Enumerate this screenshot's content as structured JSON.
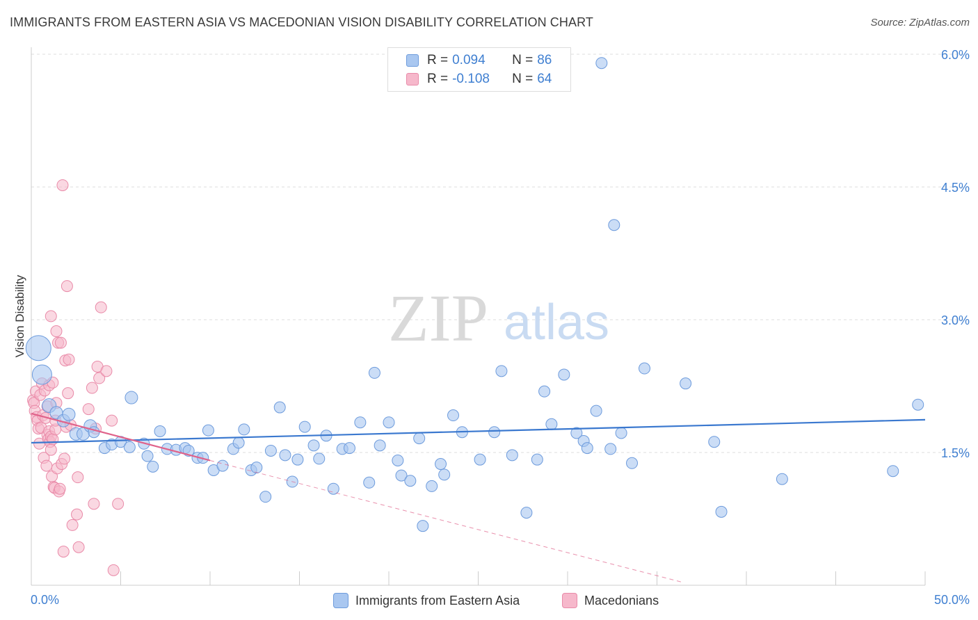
{
  "title": "IMMIGRANTS FROM EASTERN ASIA VS MACEDONIAN VISION DISABILITY CORRELATION CHART",
  "source": "Source: ZipAtlas.com",
  "watermark": {
    "zip": "ZIP",
    "atlas": "atlas"
  },
  "legend": {
    "rows": [
      {
        "r_label": "R =",
        "r_value": "0.094",
        "n_label": "N =",
        "n_value": "86"
      },
      {
        "r_label": "R =",
        "r_value": "-0.108",
        "n_label": "N =",
        "n_value": "64"
      }
    ]
  },
  "colors": {
    "blue_fill": "#a9c7f0",
    "blue_stroke": "#6d9bdc",
    "blue_line": "#3a78cf",
    "pink_fill": "#f6b8cb",
    "pink_stroke": "#e98aa8",
    "pink_line": "#e0628a",
    "axis_text": "#3f7fd1",
    "grid": "#dddddd"
  },
  "chart_data": {
    "type": "scatter",
    "title": "IMMIGRANTS FROM EASTERN ASIA VS MACEDONIAN VISION DISABILITY CORRELATION CHART",
    "xlabel": "",
    "ylabel": "Vision Disability",
    "xlim": [
      0,
      50
    ],
    "ylim": [
      0,
      6.3
    ],
    "x_tick_labels": [
      "0.0%",
      "50.0%"
    ],
    "y_ticks": [
      1.5,
      3.0,
      4.5,
      6.0
    ],
    "y_tick_labels": [
      "1.5%",
      "3.0%",
      "4.5%",
      "6.0%"
    ],
    "grid": true,
    "series": [
      {
        "name": "Immigrants from Eastern Asia",
        "r": 0.094,
        "n": 86,
        "trend": {
          "x0": 0.0,
          "y0": 1.61,
          "x1": 50.0,
          "y1": 1.87
        },
        "points": [
          [
            0.4,
            2.68,
            18
          ],
          [
            0.6,
            2.38,
            14
          ],
          [
            1.0,
            2.03,
            10
          ],
          [
            1.4,
            1.95,
            9
          ],
          [
            1.8,
            1.86,
            9
          ],
          [
            2.1,
            1.93,
            9
          ],
          [
            2.5,
            1.71,
            9
          ],
          [
            2.9,
            1.71,
            9
          ],
          [
            3.3,
            1.8,
            9
          ],
          [
            3.5,
            1.73,
            8
          ],
          [
            4.1,
            1.55,
            8
          ],
          [
            4.5,
            1.59,
            8
          ],
          [
            5.0,
            1.62,
            8
          ],
          [
            5.5,
            1.56,
            8
          ],
          [
            5.6,
            2.12,
            9
          ],
          [
            6.3,
            1.6,
            8
          ],
          [
            6.5,
            1.46,
            8
          ],
          [
            6.8,
            1.34,
            8
          ],
          [
            7.2,
            1.74,
            8
          ],
          [
            7.6,
            1.54,
            8
          ],
          [
            8.1,
            1.53,
            8
          ],
          [
            8.6,
            1.55,
            8
          ],
          [
            8.8,
            1.52,
            8
          ],
          [
            9.3,
            1.44,
            8
          ],
          [
            9.6,
            1.44,
            8
          ],
          [
            9.9,
            1.75,
            8
          ],
          [
            10.2,
            1.3,
            8
          ],
          [
            10.7,
            1.35,
            8
          ],
          [
            11.3,
            1.54,
            8
          ],
          [
            11.6,
            1.61,
            8
          ],
          [
            11.9,
            1.76,
            8
          ],
          [
            12.3,
            1.3,
            8
          ],
          [
            12.6,
            1.33,
            8
          ],
          [
            13.1,
            1.0,
            8
          ],
          [
            13.4,
            1.52,
            8
          ],
          [
            13.9,
            2.01,
            8
          ],
          [
            14.2,
            1.47,
            8
          ],
          [
            14.6,
            1.17,
            8
          ],
          [
            14.9,
            1.42,
            8
          ],
          [
            15.3,
            1.79,
            8
          ],
          [
            15.8,
            1.58,
            8
          ],
          [
            16.1,
            1.43,
            8
          ],
          [
            16.5,
            1.69,
            8
          ],
          [
            16.9,
            1.09,
            8
          ],
          [
            17.4,
            1.54,
            8
          ],
          [
            17.8,
            1.55,
            8
          ],
          [
            18.4,
            1.84,
            8
          ],
          [
            18.9,
            1.16,
            8
          ],
          [
            19.2,
            2.4,
            8
          ],
          [
            19.5,
            1.58,
            8
          ],
          [
            20.0,
            1.84,
            8
          ],
          [
            20.5,
            1.41,
            8
          ],
          [
            20.7,
            1.24,
            8
          ],
          [
            21.2,
            1.18,
            8
          ],
          [
            21.7,
            1.66,
            8
          ],
          [
            21.9,
            0.67,
            8
          ],
          [
            22.4,
            1.12,
            8
          ],
          [
            22.9,
            1.37,
            8
          ],
          [
            23.1,
            1.25,
            8
          ],
          [
            23.6,
            1.92,
            8
          ],
          [
            24.1,
            1.73,
            8
          ],
          [
            25.1,
            1.42,
            8
          ],
          [
            25.9,
            1.73,
            8
          ],
          [
            26.3,
            2.42,
            8
          ],
          [
            26.9,
            1.47,
            8
          ],
          [
            27.7,
            0.82,
            8
          ],
          [
            28.3,
            1.42,
            8
          ],
          [
            28.7,
            2.19,
            8
          ],
          [
            29.1,
            1.82,
            8
          ],
          [
            29.8,
            2.38,
            8
          ],
          [
            30.5,
            1.72,
            8
          ],
          [
            30.9,
            1.63,
            8
          ],
          [
            31.1,
            1.55,
            8
          ],
          [
            31.6,
            1.97,
            8
          ],
          [
            32.4,
            1.54,
            8
          ],
          [
            31.9,
            5.9,
            8
          ],
          [
            32.6,
            4.07,
            8
          ],
          [
            33.0,
            1.72,
            8
          ],
          [
            33.6,
            1.38,
            8
          ],
          [
            34.3,
            2.45,
            8
          ],
          [
            36.6,
            2.28,
            8
          ],
          [
            38.2,
            1.62,
            8
          ],
          [
            38.6,
            0.83,
            8
          ],
          [
            42.0,
            1.2,
            8
          ],
          [
            48.2,
            1.29,
            8
          ],
          [
            49.6,
            2.04,
            8
          ]
        ]
      },
      {
        "name": "Macedonians",
        "r": -0.108,
        "n": 64,
        "trend": {
          "x0": 0.0,
          "y0": 1.94,
          "x1": 10.0,
          "y1": 1.41
        },
        "trend_dashed": {
          "x0": 10.0,
          "y0": 1.41,
          "x1": 36.5,
          "y1": 0.03
        },
        "points": [
          [
            0.1,
            2.09
          ],
          [
            0.15,
            2.06
          ],
          [
            0.2,
            1.97
          ],
          [
            0.25,
            2.19
          ],
          [
            0.3,
            1.9
          ],
          [
            0.35,
            1.86
          ],
          [
            0.4,
            1.77
          ],
          [
            0.45,
            1.6
          ],
          [
            0.5,
            2.15
          ],
          [
            0.55,
            1.78
          ],
          [
            0.6,
            2.28
          ],
          [
            0.65,
            1.92
          ],
          [
            0.7,
            1.44
          ],
          [
            0.75,
            2.2
          ],
          [
            0.8,
            1.89
          ],
          [
            0.85,
            1.35
          ],
          [
            0.9,
            1.7
          ],
          [
            0.9,
            2.02
          ],
          [
            0.95,
            1.65
          ],
          [
            1.0,
            2.26
          ],
          [
            1.0,
            1.74
          ],
          [
            1.05,
            1.62
          ],
          [
            1.1,
            1.53
          ],
          [
            1.1,
            1.68
          ],
          [
            1.1,
            3.04
          ],
          [
            1.15,
            1.23
          ],
          [
            1.2,
            1.65
          ],
          [
            1.2,
            2.29
          ],
          [
            1.25,
            1.11
          ],
          [
            1.3,
            1.1
          ],
          [
            1.35,
            1.76
          ],
          [
            1.35,
            1.86
          ],
          [
            1.4,
            2.06
          ],
          [
            1.4,
            2.87
          ],
          [
            1.45,
            1.32
          ],
          [
            1.5,
            2.74
          ],
          [
            1.55,
            1.06
          ],
          [
            1.6,
            1.09
          ],
          [
            1.65,
            2.74
          ],
          [
            1.7,
            1.37
          ],
          [
            1.75,
            4.52
          ],
          [
            1.8,
            0.38
          ],
          [
            1.85,
            1.43
          ],
          [
            1.9,
            2.54
          ],
          [
            1.95,
            1.79
          ],
          [
            2.0,
            3.38
          ],
          [
            2.05,
            2.17
          ],
          [
            2.1,
            2.55
          ],
          [
            2.2,
            1.81
          ],
          [
            2.3,
            0.68
          ],
          [
            2.55,
            0.8
          ],
          [
            2.6,
            1.22
          ],
          [
            2.65,
            0.43
          ],
          [
            3.2,
            1.99
          ],
          [
            3.4,
            2.23
          ],
          [
            3.5,
            0.92
          ],
          [
            3.6,
            1.77
          ],
          [
            3.7,
            2.47
          ],
          [
            3.8,
            2.34
          ],
          [
            3.9,
            3.14
          ],
          [
            4.2,
            2.42
          ],
          [
            4.5,
            1.86
          ],
          [
            4.6,
            0.17
          ],
          [
            4.85,
            0.92
          ]
        ]
      }
    ]
  },
  "bottom_legend": {
    "items": [
      {
        "label": "Immigrants from Eastern Asia"
      },
      {
        "label": "Macedonians"
      }
    ]
  }
}
